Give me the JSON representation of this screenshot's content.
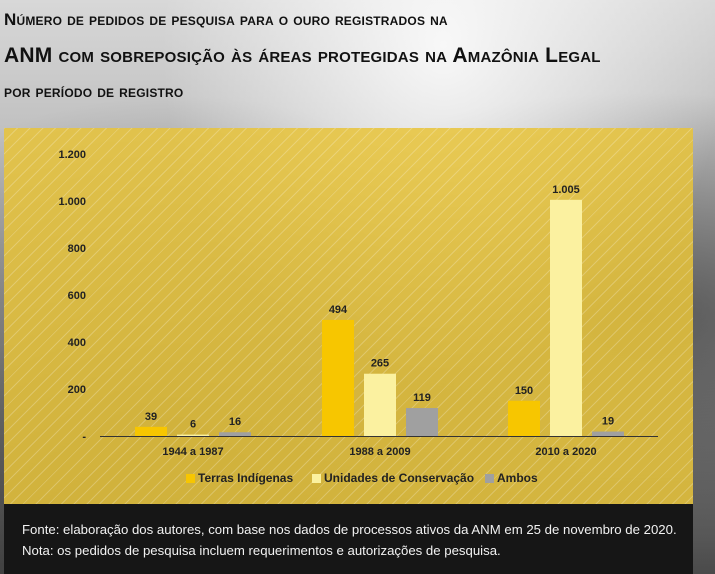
{
  "title": {
    "line1": "Número de pedidos de pesquisa para o ouro registrados na",
    "line2": "ANM com sobreposição às áreas protegidas na Amazônia Legal",
    "line3": "por período de registro"
  },
  "note": "Fonte: elaboração dos autores, com base nos dados de processos ativos da ANM em 25 de novembro de 2020. Nota: os pedidos de pesquisa incluem requerimentos e autorizações de pesquisa.",
  "colors": {
    "terras_indigenas": "#f7c600",
    "unidades_conservacao": "#fbf1a0",
    "ambos": "#a0a0a0"
  },
  "chart_data": {
    "type": "bar",
    "categories": [
      "1944 a 1987",
      "1988 a 2009",
      "2010 a 2020"
    ],
    "series": [
      {
        "name": "Terras Indígenas",
        "values": [
          39,
          494,
          150
        ],
        "labels": [
          "39",
          "494",
          "150"
        ]
      },
      {
        "name": "Unidades de Conservação",
        "values": [
          6,
          265,
          1005
        ],
        "labels": [
          "6",
          "265",
          "1.005"
        ]
      },
      {
        "name": "Ambos",
        "values": [
          16,
          119,
          19
        ],
        "labels": [
          "16",
          "119",
          "19"
        ]
      }
    ],
    "yticks": [
      "-",
      "200",
      "400",
      "600",
      "800",
      "1.000",
      "1.200"
    ],
    "ylim": [
      0,
      1200
    ],
    "legend_position": "bottom",
    "grid": false
  }
}
